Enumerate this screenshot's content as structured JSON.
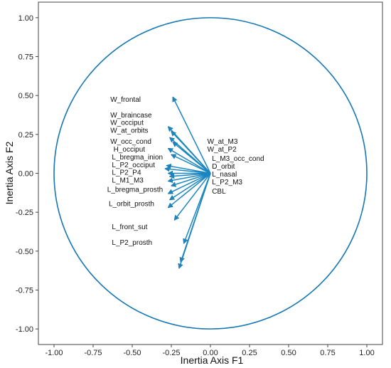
{
  "chart_data": {
    "type": "scatter",
    "title": "",
    "xlabel": "Inertia Axis F1",
    "ylabel": "Inertia Axis F2",
    "xlim": [
      -1.1,
      1.1
    ],
    "ylim": [
      -1.1,
      1.1
    ],
    "xticks": [
      "-1.00",
      "-0.75",
      "-0.50",
      "-0.25",
      "0.00",
      "0.25",
      "0.50",
      "0.75",
      "1.00"
    ],
    "yticks": [
      "1.00",
      "0.75",
      "0.50",
      "0.25",
      "0.00",
      "-0.25",
      "-0.50",
      "-0.75",
      "-1.00"
    ],
    "xtick_values": [
      -1,
      -0.75,
      -0.5,
      -0.25,
      0,
      0.25,
      0.5,
      0.75,
      1
    ],
    "ytick_values": [
      1,
      0.75,
      0.5,
      0.25,
      0,
      -0.25,
      -0.5,
      -0.75,
      -1
    ],
    "grid": false,
    "unit_circle": true,
    "colors": {
      "arrow": "#1a86c0",
      "circle": "#1577b3",
      "axes": "#444444"
    },
    "arrows": [
      {
        "x": -0.24,
        "y": 0.49
      },
      {
        "x": -0.27,
        "y": 0.3
      },
      {
        "x": -0.25,
        "y": 0.27
      },
      {
        "x": -0.26,
        "y": 0.23
      },
      {
        "x": -0.24,
        "y": 0.2
      },
      {
        "x": -0.27,
        "y": 0.16
      },
      {
        "x": -0.25,
        "y": 0.12
      },
      {
        "x": -0.28,
        "y": 0.05
      },
      {
        "x": -0.29,
        "y": 0.03
      },
      {
        "x": -0.27,
        "y": 0.0
      },
      {
        "x": -0.26,
        "y": -0.02
      },
      {
        "x": -0.27,
        "y": -0.05
      },
      {
        "x": -0.25,
        "y": -0.08
      },
      {
        "x": -0.27,
        "y": -0.13
      },
      {
        "x": -0.26,
        "y": -0.17
      },
      {
        "x": -0.27,
        "y": -0.22
      },
      {
        "x": -0.23,
        "y": -0.3
      },
      {
        "x": -0.17,
        "y": -0.45
      },
      {
        "x": -0.19,
        "y": -0.57
      },
      {
        "x": -0.2,
        "y": -0.61
      }
    ],
    "labels_left": [
      {
        "text": "W_frontal",
        "x": -0.64,
        "y": 0.46
      },
      {
        "text": "W_braincase",
        "x": -0.64,
        "y": 0.36
      },
      {
        "text": "W_occiput",
        "x": -0.64,
        "y": 0.31
      },
      {
        "text": "W_at_orbits",
        "x": -0.64,
        "y": 0.26
      },
      {
        "text": "W_occ_cond",
        "x": -0.64,
        "y": 0.19
      },
      {
        "text": "H_occiput",
        "x": -0.62,
        "y": 0.14
      },
      {
        "text": "L_bregma_inion",
        "x": -0.63,
        "y": 0.09
      },
      {
        "text": "L_P2_occiput",
        "x": -0.63,
        "y": 0.04
      },
      {
        "text": "L_P2_P4",
        "x": -0.63,
        "y": -0.01
      },
      {
        "text": "L_M1_M3",
        "x": -0.63,
        "y": -0.06
      },
      {
        "text": "L_bregma_prosth",
        "x": -0.66,
        "y": -0.12
      },
      {
        "text": "L_orbit_prosth",
        "x": -0.65,
        "y": -0.21
      },
      {
        "text": "L_front_sut",
        "x": -0.63,
        "y": -0.36
      },
      {
        "text": "L_P2_prosth",
        "x": -0.63,
        "y": -0.46
      }
    ],
    "labels_right": [
      {
        "text": "W_at_M3",
        "x": -0.02,
        "y": 0.19
      },
      {
        "text": "W_at_P2",
        "x": -0.02,
        "y": 0.14
      },
      {
        "text": "L_M3_occ_cond",
        "x": 0.01,
        "y": 0.08
      },
      {
        "text": "D_orbit",
        "x": 0.01,
        "y": 0.03
      },
      {
        "text": "L_nasal",
        "x": 0.01,
        "y": -0.02
      },
      {
        "text": "L_P2_M3",
        "x": 0.01,
        "y": -0.07
      },
      {
        "text": "CBL",
        "x": 0.01,
        "y": -0.13
      }
    ]
  }
}
